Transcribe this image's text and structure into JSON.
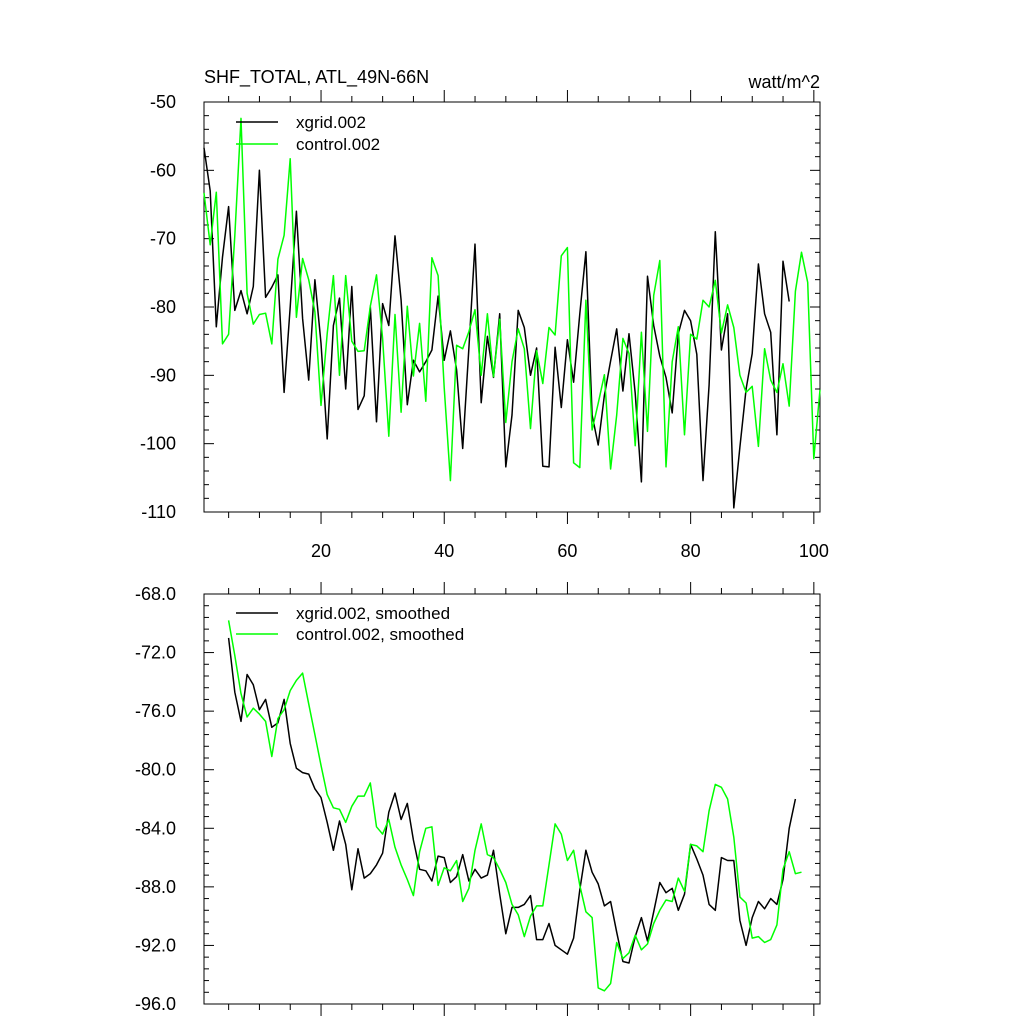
{
  "chart_data": [
    {
      "type": "line",
      "title": "SHF_TOTAL, ATL_49N-66N",
      "units": "watt/m^2",
      "xlabel": "",
      "ylabel": "",
      "xlim": [
        1,
        101
      ],
      "ylim": [
        -110,
        -50
      ],
      "xticks": [
        20,
        40,
        60,
        80,
        100
      ],
      "yticks": [
        -50,
        -60,
        -70,
        -80,
        -90,
        -100,
        -110
      ],
      "ytick_labels": [
        "-50",
        "-60",
        "-70",
        "-80",
        "-90",
        "-100",
        "-110"
      ],
      "legend_position": "top-left",
      "grid": false,
      "series": [
        {
          "name": "xgrid.002",
          "color": "#000000",
          "x_start": 1,
          "values": [
            -56.7,
            -63.0,
            -82.9,
            -72.7,
            -65.3,
            -80.5,
            -77.6,
            -81.0,
            -77.0,
            -60.0,
            -78.6,
            -77.1,
            -75.3,
            -92.5,
            -80.0,
            -66.0,
            -81.7,
            -90.7,
            -76.0,
            -85.3,
            -99.3,
            -82.7,
            -78.7,
            -92.0,
            -77.0,
            -95.0,
            -93.0,
            -79.9,
            -96.8,
            -79.5,
            -82.7,
            -69.6,
            -79.0,
            -94.3,
            -87.8,
            -89.5,
            -88.0,
            -86.3,
            -78.4,
            -87.8,
            -83.5,
            -89.2,
            -100.7,
            -86.0,
            -70.8,
            -94.0,
            -84.3,
            -90.3,
            -81.0,
            -103.4,
            -95.8,
            -80.5,
            -83.0,
            -90.0,
            -86.0,
            -103.3,
            -103.4,
            -85.9,
            -94.7,
            -84.8,
            -91.0,
            -81.0,
            -71.9,
            -95.8,
            -100.2,
            -92.9,
            -87.9,
            -83.2,
            -92.3,
            -83.9,
            -92.6,
            -105.6,
            -75.5,
            -82.7,
            -87.2,
            -90.3,
            -95.5,
            -83.9,
            -80.5,
            -82.0,
            -86.9,
            -105.4,
            -91.4,
            -69.0,
            -86.3,
            -81.0,
            -109.4,
            -100.5,
            -92.0,
            -86.8,
            -73.7,
            -81.0,
            -83.7,
            -98.7,
            -73.3,
            -79.2
          ]
        },
        {
          "name": "control.002",
          "color": "#00ff00",
          "x_start": 1,
          "values": [
            -63.3,
            -70.9,
            -63.2,
            -85.4,
            -84.0,
            -69.6,
            -52.4,
            -78.0,
            -82.5,
            -81.1,
            -80.9,
            -85.4,
            -73.0,
            -69.5,
            -58.3,
            -81.5,
            -72.9,
            -76.0,
            -80.7,
            -94.4,
            -83.9,
            -75.4,
            -90.0,
            -75.4,
            -85.0,
            -86.5,
            -86.4,
            -79.9,
            -75.3,
            -84.6,
            -98.9,
            -81.1,
            -95.4,
            -79.9,
            -90.1,
            -82.4,
            -93.8,
            -72.8,
            -75.4,
            -91.8,
            -105.4,
            -85.6,
            -86.1,
            -83.6,
            -80.4,
            -90.0,
            -81.0,
            -90.2,
            -81.8,
            -96.9,
            -88.0,
            -83.2,
            -86.1,
            -97.8,
            -86.4,
            -91.2,
            -83.0,
            -84.1,
            -72.5,
            -71.3,
            -102.8,
            -103.5,
            -79.0,
            -98.0,
            -94.1,
            -89.9,
            -103.7,
            -95.8,
            -84.6,
            -86.8,
            -100.3,
            -83.7,
            -98.2,
            -78.3,
            -73.2,
            -103.4,
            -88.0,
            -82.9,
            -98.7,
            -84.0,
            -84.7,
            -79.0,
            -80.0,
            -76.1,
            -83.8,
            -79.7,
            -83.0,
            -90.0,
            -92.5,
            -91.6,
            -100.4,
            -86.1,
            -90.7,
            -92.5,
            -88.3,
            -94.5,
            -77.7,
            -72.0,
            -76.4,
            -102.2,
            -92.1
          ]
        }
      ]
    },
    {
      "type": "line",
      "title": "",
      "xlabel": "",
      "ylabel": "",
      "xlim": [
        1,
        101
      ],
      "ylim": [
        -96,
        -68
      ],
      "xticks": [
        20,
        40,
        60,
        80,
        100
      ],
      "yticks": [
        -68,
        -72,
        -76,
        -80,
        -84,
        -88,
        -92,
        -96
      ],
      "ytick_labels": [
        "-68.0",
        "-72.0",
        "-76.0",
        "-80.0",
        "-84.0",
        "-88.0",
        "-92.0",
        "-96.0"
      ],
      "legend_position": "top-left",
      "grid": false,
      "series": [
        {
          "name": "xgrid.002, smoothed",
          "color": "#000000",
          "x_start": 5,
          "values": [
            -71.0,
            -74.7,
            -76.7,
            -73.5,
            -74.2,
            -75.9,
            -75.2,
            -77.1,
            -76.8,
            -75.2,
            -78.2,
            -79.9,
            -80.2,
            -80.3,
            -81.3,
            -81.9,
            -83.6,
            -85.5,
            -83.5,
            -85.1,
            -88.2,
            -85.4,
            -87.4,
            -87.1,
            -86.5,
            -85.7,
            -82.9,
            -81.6,
            -83.4,
            -82.3,
            -84.8,
            -86.8,
            -86.9,
            -87.6,
            -85.9,
            -86.0,
            -87.7,
            -87.3,
            -85.8,
            -87.6,
            -86.8,
            -87.4,
            -87.2,
            -85.5,
            -88.5,
            -91.2,
            -89.4,
            -89.4,
            -89.2,
            -88.6,
            -91.6,
            -91.6,
            -90.5,
            -92.0,
            -92.3,
            -92.6,
            -91.5,
            -88.2,
            -85.5,
            -87.0,
            -87.8,
            -89.3,
            -89.0,
            -91.1,
            -93.1,
            -93.2,
            -91.4,
            -90.1,
            -91.7,
            -89.7,
            -87.7,
            -88.4,
            -88.1,
            -89.6,
            -88.5,
            -85.1,
            -86.1,
            -87.2,
            -89.2,
            -89.6,
            -86.0,
            -86.2,
            -86.2,
            -90.3,
            -92.0,
            -90.1,
            -89.0,
            -89.5,
            -88.8,
            -89.2,
            -87.5,
            -84.0,
            -82.0
          ]
        },
        {
          "name": "control.002, smoothed",
          "color": "#00ff00",
          "x_start": 5,
          "values": [
            -69.8,
            -72.2,
            -74.8,
            -76.4,
            -75.8,
            -76.2,
            -76.7,
            -79.1,
            -76.5,
            -75.9,
            -74.6,
            -73.9,
            -73.4,
            -75.5,
            -77.6,
            -79.7,
            -81.7,
            -82.6,
            -82.7,
            -83.6,
            -82.5,
            -81.8,
            -81.8,
            -80.9,
            -83.9,
            -84.4,
            -83.4,
            -85.3,
            -86.5,
            -87.5,
            -88.6,
            -85.6,
            -84.0,
            -83.9,
            -87.9,
            -86.7,
            -86.9,
            -86.2,
            -89.0,
            -88.1,
            -85.5,
            -83.7,
            -85.8,
            -86.0,
            -86.8,
            -87.7,
            -89.2,
            -89.9,
            -91.4,
            -90.0,
            -89.3,
            -89.3,
            -86.5,
            -83.7,
            -84.4,
            -86.2,
            -85.5,
            -87.9,
            -89.7,
            -90.1,
            -94.9,
            -95.1,
            -94.6,
            -91.8,
            -92.9,
            -92.5,
            -91.3,
            -92.3,
            -91.9,
            -90.5,
            -89.6,
            -88.9,
            -89.0,
            -87.4,
            -88.3,
            -85.1,
            -85.2,
            -85.6,
            -82.8,
            -81.0,
            -81.2,
            -82.0,
            -84.6,
            -88.7,
            -89.1,
            -91.5,
            -91.4,
            -91.8,
            -91.6,
            -90.6,
            -86.8,
            -85.6,
            -87.1,
            -87.0
          ]
        }
      ]
    }
  ]
}
